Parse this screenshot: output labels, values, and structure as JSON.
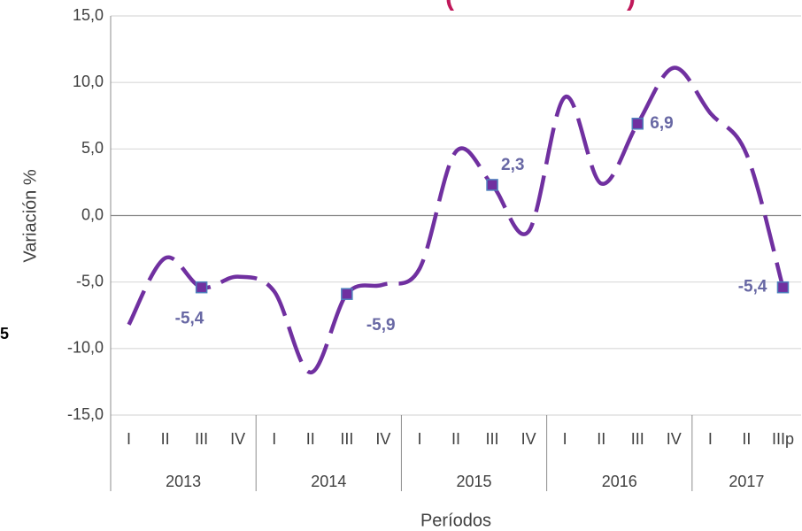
{
  "chart_data": {
    "type": "line",
    "title_fragments": [
      "(",
      ")"
    ],
    "annotations": [
      "5"
    ],
    "y_label": "Variación %",
    "x_label": "Períodos",
    "categories": [
      "I",
      "II",
      "III",
      "IV",
      "I",
      "II",
      "III",
      "IV",
      "I",
      "II",
      "III",
      "IV",
      "I",
      "II",
      "III",
      "IV",
      "I",
      "II",
      "IIIp"
    ],
    "groups": [
      {
        "label": "2013",
        "count": 4
      },
      {
        "label": "2014",
        "count": 4
      },
      {
        "label": "2015",
        "count": 4
      },
      {
        "label": "2016",
        "count": 4
      },
      {
        "label": "2017",
        "count": 3
      }
    ],
    "series": [
      {
        "name": "Variación",
        "color": "#7030a0",
        "marker_color": "#4f81bd",
        "values": [
          -8.2,
          -3.2,
          -5.4,
          -4.6,
          -5.7,
          -11.8,
          -5.9,
          -5.2,
          -4.0,
          4.8,
          2.3,
          -1.2,
          8.9,
          2.4,
          6.9,
          11.1,
          7.7,
          4.6,
          -5.4
        ],
        "value_labels": [
          null,
          null,
          "-5,4",
          null,
          null,
          null,
          "-5,9",
          null,
          null,
          null,
          "2,3",
          null,
          null,
          null,
          "6,9",
          null,
          null,
          null,
          "-5,4"
        ]
      }
    ],
    "ylim": [
      -15,
      15
    ],
    "yticks": [
      {
        "value": -15,
        "label": "-15,0"
      },
      {
        "value": -10,
        "label": "-10,0"
      },
      {
        "value": -5,
        "label": "-5,0"
      },
      {
        "value": 0,
        "label": "0,0"
      },
      {
        "value": 5,
        "label": "5,0"
      },
      {
        "value": 10,
        "label": "10,0"
      },
      {
        "value": 15,
        "label": "15,0"
      }
    ],
    "grid": true
  }
}
